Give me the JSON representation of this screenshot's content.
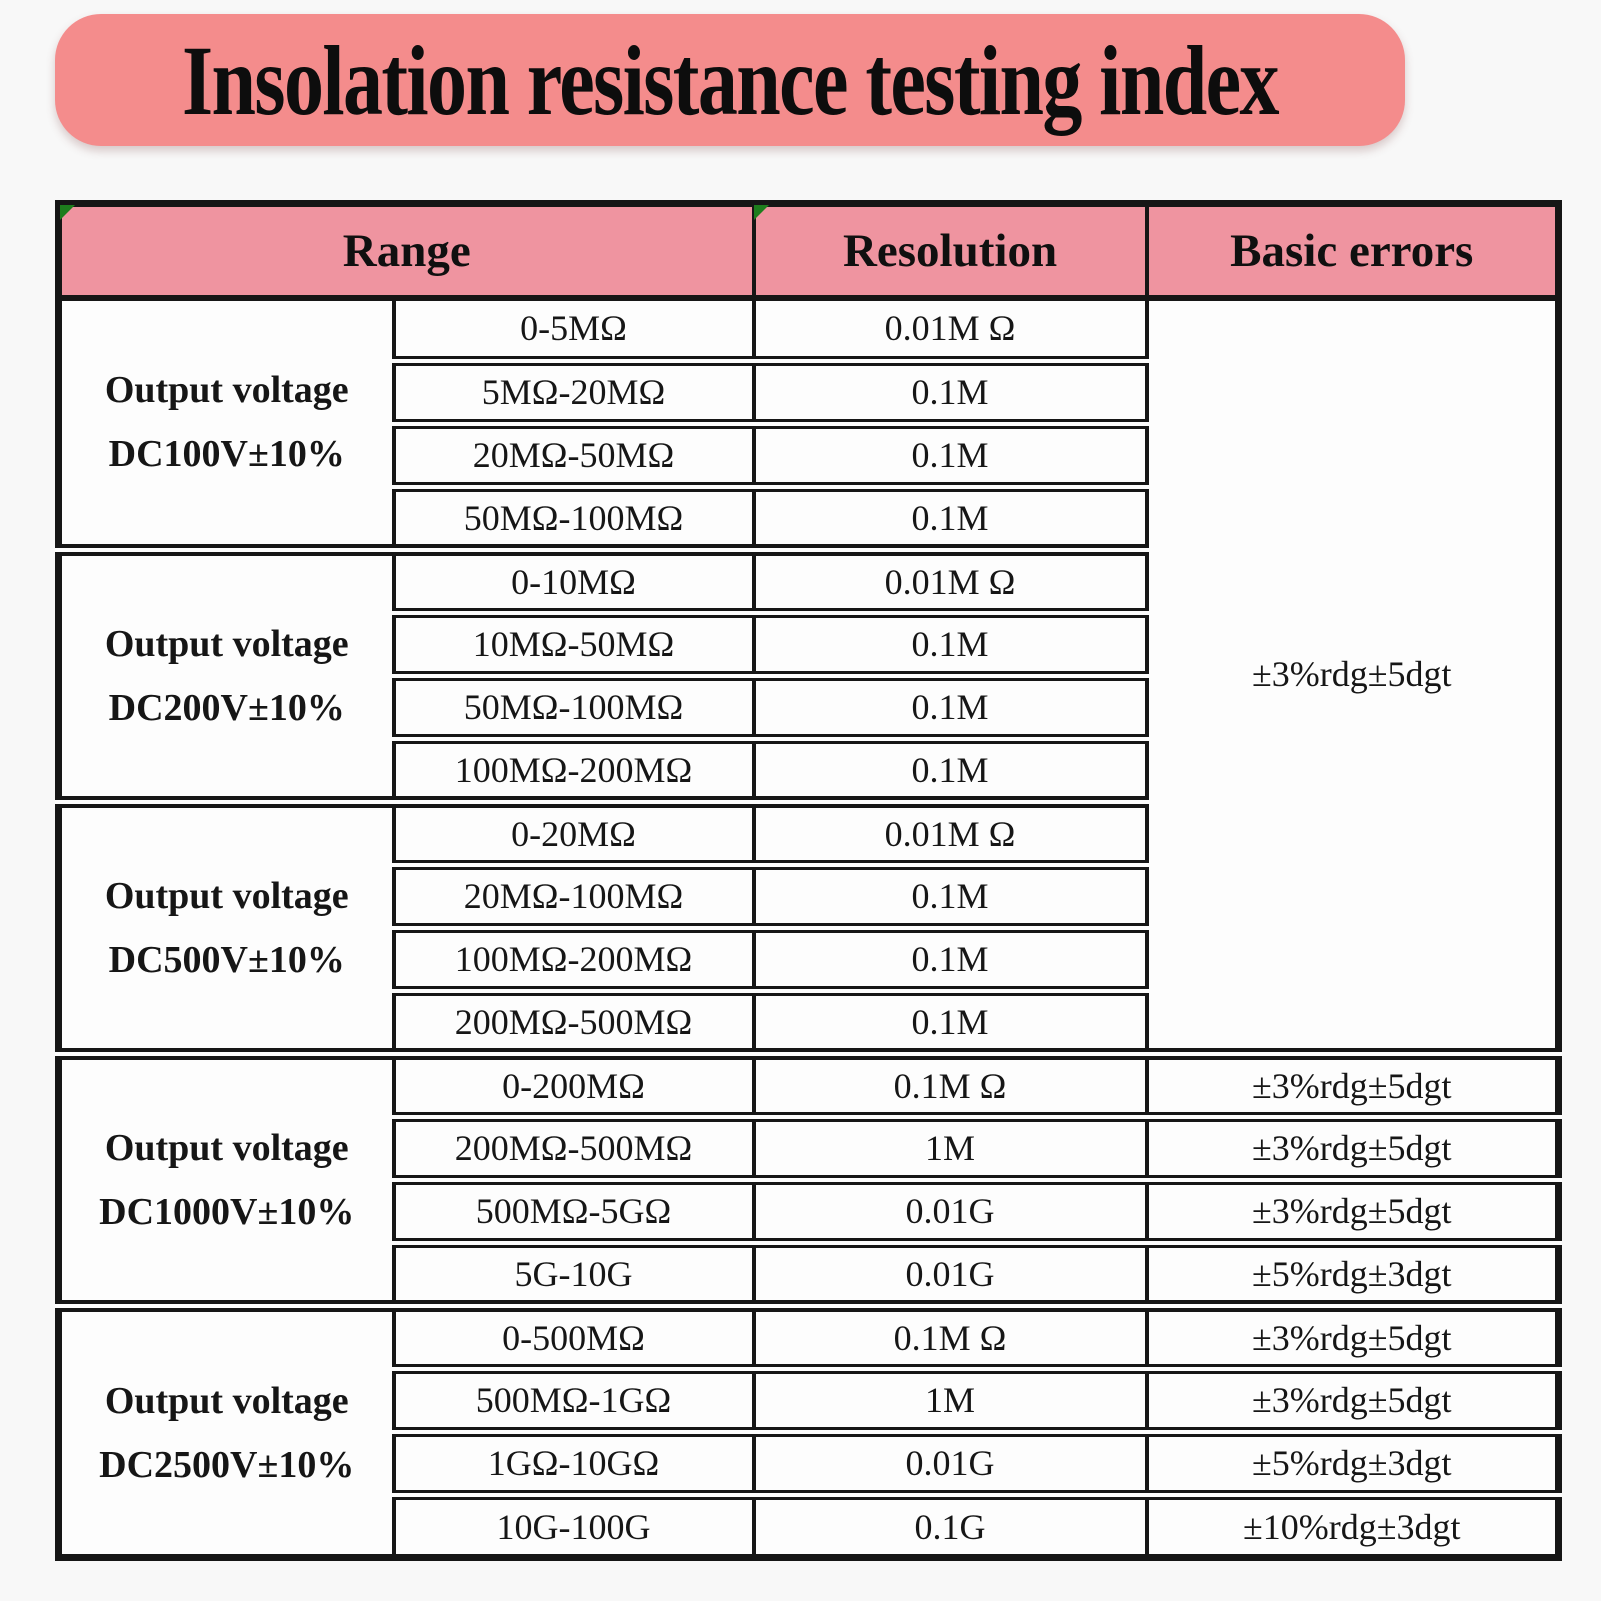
{
  "title": "Insolation resistance testing index",
  "colors": {
    "banner_pink": "#f48c8c",
    "header_pink": "#ef94a0",
    "corner_green": "#1d7d1d",
    "border_black": "#161616",
    "page_bg": "#f8f8f8"
  },
  "table": {
    "headers": {
      "range": "Range",
      "resolution": "Resolution",
      "errors": "Basic errors"
    },
    "merged_error": "±3%rdg±5dgt",
    "blocks": [
      {
        "voltage": [
          "Output voltage",
          "DC100V±10%"
        ],
        "rows": [
          {
            "range": "0-5MΩ",
            "resolution": "0.01M Ω"
          },
          {
            "range": "5MΩ-20MΩ",
            "resolution": "0.1M"
          },
          {
            "range": "20MΩ-50MΩ",
            "resolution": "0.1M"
          },
          {
            "range": "50MΩ-100MΩ",
            "resolution": "0.1M"
          }
        ]
      },
      {
        "voltage": [
          "Output voltage",
          "DC200V±10%"
        ],
        "rows": [
          {
            "range": "0-10MΩ",
            "resolution": "0.01M Ω"
          },
          {
            "range": "10MΩ-50MΩ",
            "resolution": "0.1M"
          },
          {
            "range": "50MΩ-100MΩ",
            "resolution": "0.1M"
          },
          {
            "range": "100MΩ-200MΩ",
            "resolution": "0.1M"
          }
        ]
      },
      {
        "voltage": [
          "Output voltage",
          "DC500V±10%"
        ],
        "rows": [
          {
            "range": "0-20MΩ",
            "resolution": "0.01M Ω"
          },
          {
            "range": "20MΩ-100MΩ",
            "resolution": "0.1M"
          },
          {
            "range": "100MΩ-200MΩ",
            "resolution": "0.1M"
          },
          {
            "range": "200MΩ-500MΩ",
            "resolution": "0.1M"
          }
        ]
      },
      {
        "voltage": [
          "Output voltage",
          "DC1000V±10%"
        ],
        "rows": [
          {
            "range": "0-200MΩ",
            "resolution": "0.1M Ω",
            "error": "±3%rdg±5dgt"
          },
          {
            "range": "200MΩ-500MΩ",
            "resolution": "1M",
            "error": "±3%rdg±5dgt"
          },
          {
            "range": "500MΩ-5GΩ",
            "resolution": "0.01G",
            "error": "±3%rdg±5dgt"
          },
          {
            "range": "5G-10G",
            "resolution": "0.01G",
            "error": "±5%rdg±3dgt"
          }
        ]
      },
      {
        "voltage": [
          "Output voltage",
          "DC2500V±10%"
        ],
        "rows": [
          {
            "range": "0-500MΩ",
            "resolution": "0.1M Ω",
            "error": "±3%rdg±5dgt"
          },
          {
            "range": "500MΩ-1GΩ",
            "resolution": "1M",
            "error": "±3%rdg±5dgt"
          },
          {
            "range": "1GΩ-10GΩ",
            "resolution": "0.01G",
            "error": "±5%rdg±3dgt"
          },
          {
            "range": "10G-100G",
            "resolution": "0.1G",
            "error": "±10%rdg±3dgt"
          }
        ]
      }
    ]
  }
}
